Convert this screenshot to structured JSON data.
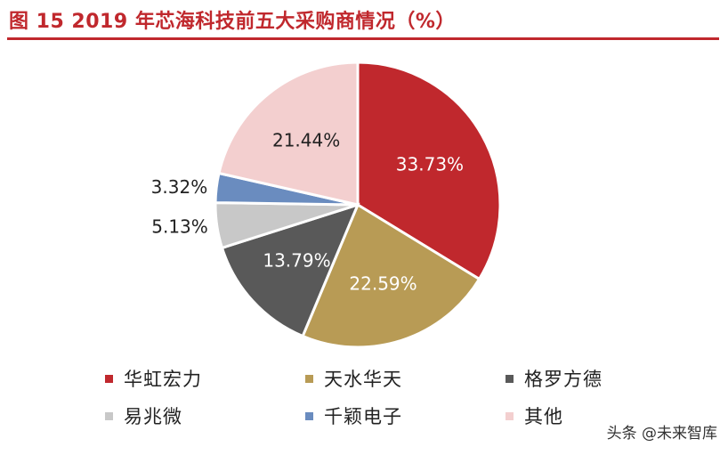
{
  "title": "图 15  2019 年芯海科技前五大采购商情况（%）",
  "watermark": "头条 @未来智库",
  "chart_data": {
    "type": "pie",
    "title": "图 15  2019 年芯海科技前五大采购商情况（%）",
    "unit": "%",
    "legend_position": "bottom",
    "slices": [
      {
        "label": "华虹宏力",
        "value": 33.73,
        "display": "33.73%",
        "color": "#c0282d"
      },
      {
        "label": "天水华天",
        "value": 22.59,
        "display": "22.59%",
        "color": "#b89b55"
      },
      {
        "label": "格罗方德",
        "value": 13.79,
        "display": "13.79%",
        "color": "#595959"
      },
      {
        "label": "易兆微",
        "value": 5.13,
        "display": "5.13%",
        "color": "#c8c8c8"
      },
      {
        "label": "千颖电子",
        "value": 3.32,
        "display": "3.32%",
        "color": "#6a8cbf"
      },
      {
        "label": "其他",
        "value": 21.44,
        "display": "21.44%",
        "color": "#f3cfcf"
      }
    ]
  }
}
